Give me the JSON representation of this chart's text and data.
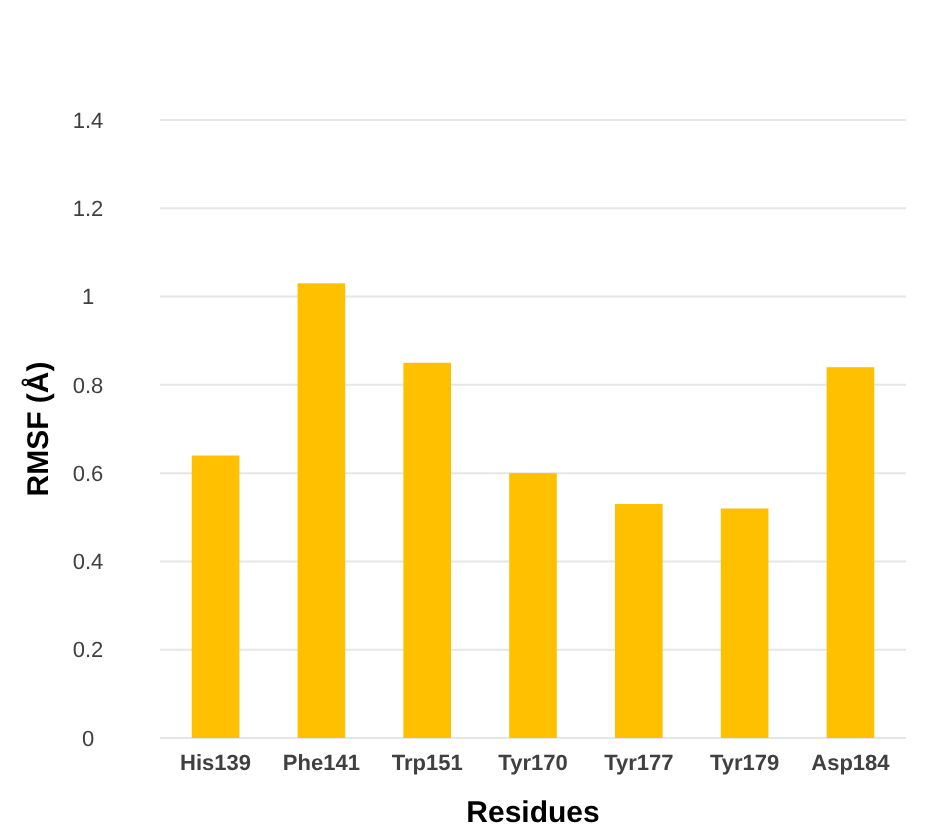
{
  "chart_data": {
    "type": "bar",
    "xlabel": "Residues",
    "ylabel": "RMSF (Å)",
    "categories": [
      "His139",
      "Phe141",
      "Trp151",
      "Tyr170",
      "Tyr177",
      "Tyr179",
      "Asp184"
    ],
    "values": [
      0.64,
      1.03,
      0.85,
      0.6,
      0.53,
      0.52,
      0.84
    ],
    "color": "#ffc000",
    "ylim": [
      0,
      1.4
    ],
    "yticks": [
      0,
      0.2,
      0.4,
      0.6,
      0.8,
      1,
      1.2,
      1.4
    ],
    "grid": "y"
  }
}
